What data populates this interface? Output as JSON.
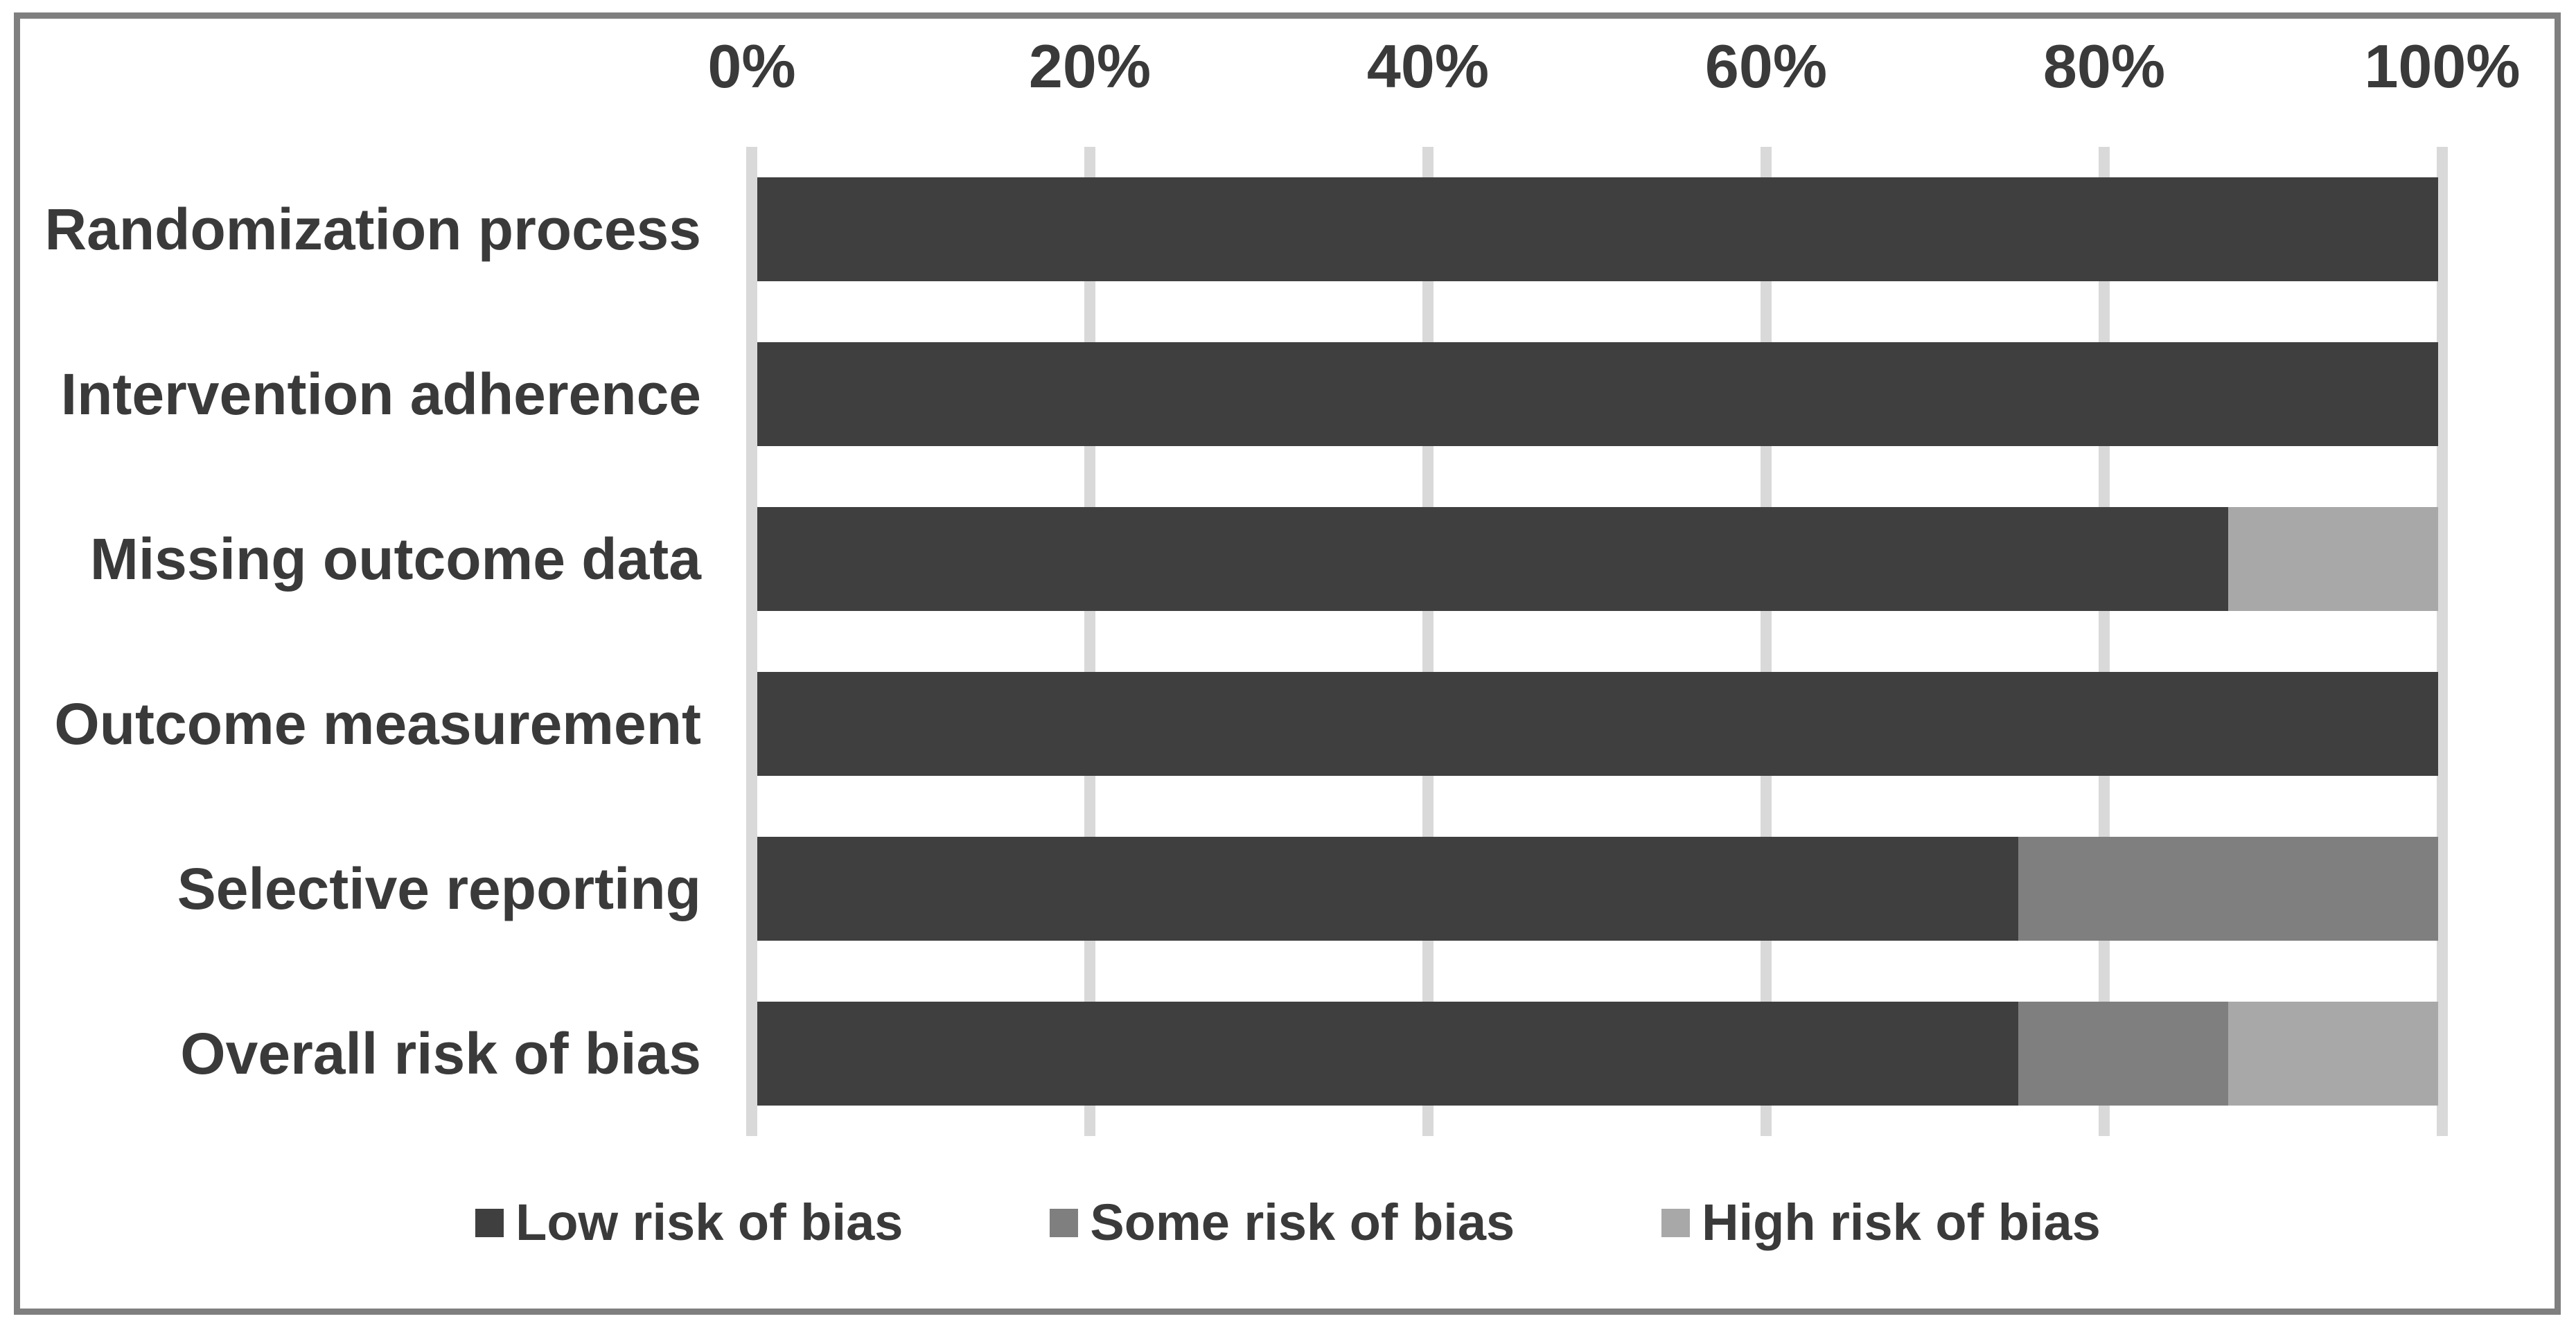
{
  "chart_data": {
    "type": "bar",
    "orientation": "horizontal-stacked",
    "unit": "percent",
    "title": "",
    "xlabel": "",
    "ylabel": "",
    "categories": [
      "Randomization process",
      "Intervention adherence",
      "Missing outcome data",
      "Outcome measurement",
      "Selective reporting",
      "Overall risk of bias"
    ],
    "series": [
      {
        "name": "Low risk of bias",
        "color": "#3f3f3f",
        "values": [
          100,
          100,
          87.5,
          100,
          75,
          75
        ]
      },
      {
        "name": "Some risk of bias",
        "color": "#7f7f7f",
        "values": [
          0,
          0,
          0,
          0,
          25,
          12.5
        ]
      },
      {
        "name": "High risk of bias",
        "color": "#a8a8a8",
        "values": [
          0,
          0,
          12.5,
          0,
          0,
          12.5
        ]
      }
    ],
    "x_axis": {
      "position": "top",
      "min": 0,
      "max": 100,
      "tick_step": 20,
      "ticks": [
        "0%",
        "20%",
        "40%",
        "60%",
        "80%",
        "100%"
      ]
    },
    "grid": {
      "show": true,
      "color": "#d9d9d9"
    },
    "legend": {
      "position": "bottom",
      "labels": [
        "Low risk of bias",
        "Some risk of bias",
        "High risk of bias"
      ]
    },
    "frame_color": "#7f7f7f",
    "text_color": "#3a3a3a",
    "background_color": "#ffffff"
  }
}
